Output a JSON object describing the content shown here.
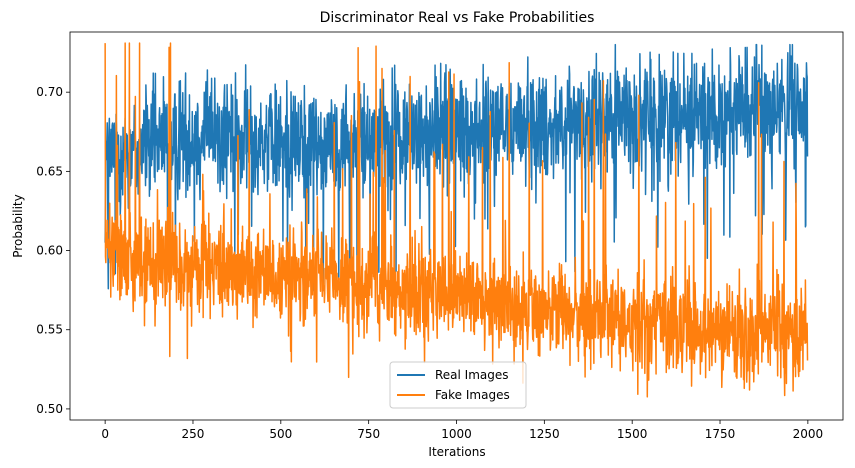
{
  "chart_data": {
    "type": "line",
    "title": "Discriminator Real vs Fake Probabilities",
    "xlabel": "Iterations",
    "ylabel": "Probability",
    "xlim": [
      -100,
      2100
    ],
    "ylim": [
      0.493,
      0.738
    ],
    "xticks": [
      0,
      250,
      500,
      750,
      1000,
      1250,
      1500,
      1750,
      2000
    ],
    "yticks": [
      0.5,
      0.55,
      0.6,
      0.65,
      0.7
    ],
    "xtick_labels": [
      "0",
      "250",
      "500",
      "750",
      "1000",
      "1250",
      "1500",
      "1750",
      "2000"
    ],
    "ytick_labels": [
      "0.50",
      "0.55",
      "0.60",
      "0.65",
      "0.70"
    ],
    "legend_position": "lower-center",
    "grid": false,
    "n_points": 2000,
    "series": [
      {
        "name": "Real Images",
        "color": "#1f77b4",
        "start_value": 0.605,
        "trend": [
          [
            0,
            0.66
          ],
          [
            250,
            0.672
          ],
          [
            500,
            0.67
          ],
          [
            750,
            0.668
          ],
          [
            1000,
            0.675
          ],
          [
            1250,
            0.68
          ],
          [
            1500,
            0.683
          ],
          [
            1750,
            0.688
          ],
          [
            2000,
            0.69
          ]
        ],
        "range": [
          0.52,
          0.73
        ]
      },
      {
        "name": "Fake Images",
        "color": "#ff7f0e",
        "start_value": 0.731,
        "trend": [
          [
            0,
            0.6
          ],
          [
            250,
            0.588
          ],
          [
            500,
            0.583
          ],
          [
            750,
            0.578
          ],
          [
            1000,
            0.572
          ],
          [
            1250,
            0.562
          ],
          [
            1500,
            0.556
          ],
          [
            1750,
            0.55
          ],
          [
            2000,
            0.545
          ]
        ],
        "range": [
          0.502,
          0.731
        ]
      }
    ]
  }
}
